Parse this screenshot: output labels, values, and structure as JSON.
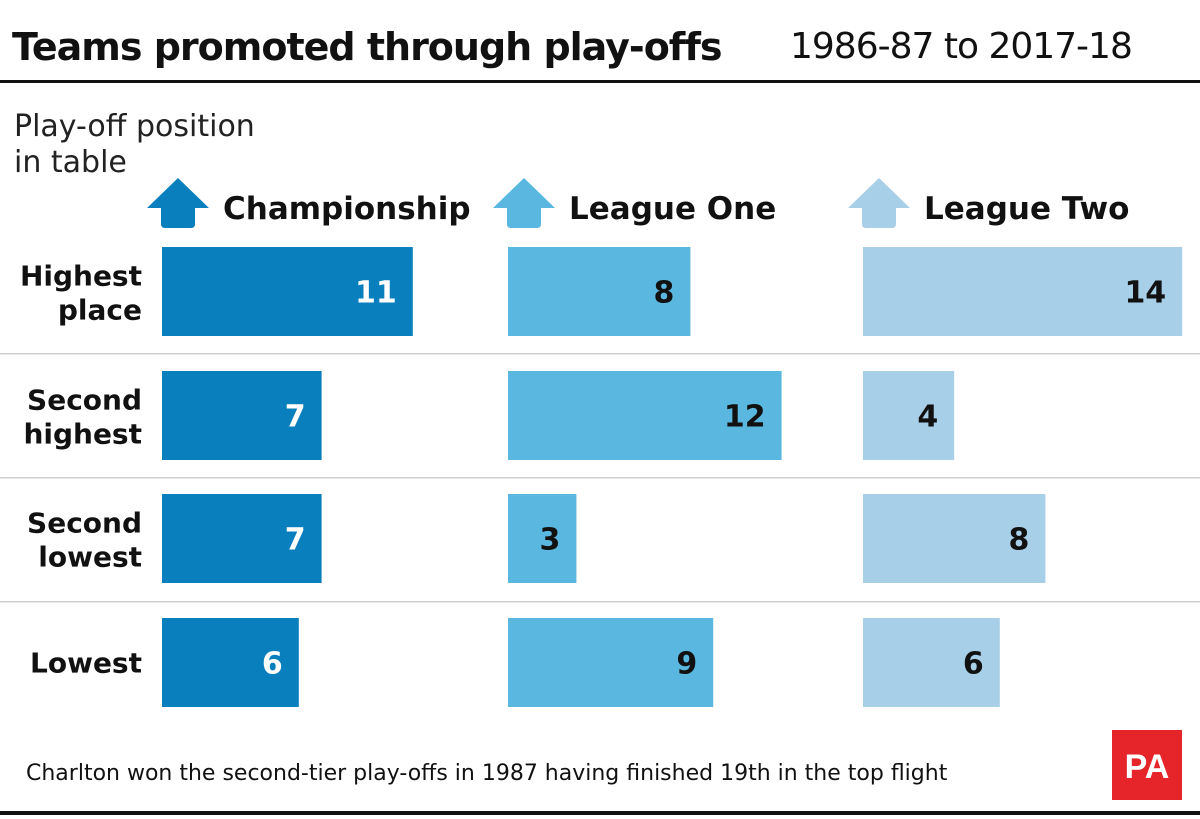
{
  "chart_data": {
    "type": "bar",
    "orientation": "horizontal",
    "title": "Teams promoted through play-offs",
    "subtitle": "1986-87 to 2017-18",
    "ylabel": "Play-off position in table",
    "categories": [
      "Highest place",
      "Second highest",
      "Second lowest",
      "Lowest"
    ],
    "series": [
      {
        "name": "Championship",
        "values": [
          11,
          7,
          7,
          6
        ],
        "color": "#0a7fbd",
        "label_color": "#ffffff"
      },
      {
        "name": "League One",
        "values": [
          8,
          12,
          3,
          9
        ],
        "color": "#5ab7e0",
        "label_color": "#111111"
      },
      {
        "name": "League Two",
        "values": [
          14,
          4,
          8,
          6
        ],
        "color": "#a8cfe8",
        "label_color": "#111111"
      }
    ],
    "grid": false,
    "legend": "top (panel headers with up-arrow icons)",
    "footnote": "Charlton won the second-tier play-offs in 1987 having finished 19th in the top flight"
  },
  "logo": {
    "text": "PA",
    "color": "#e5252a"
  },
  "icons": {
    "series_header": "arrow-up-icon"
  }
}
